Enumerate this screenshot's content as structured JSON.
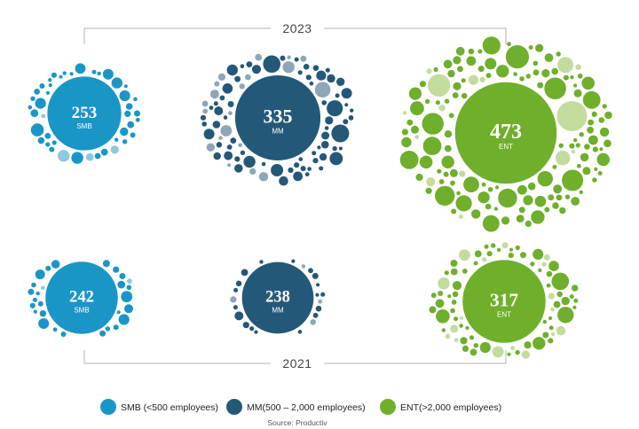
{
  "chart_data": {
    "type": "bubble",
    "groups": [
      {
        "year": "2023",
        "items": [
          {
            "segment": "SMB",
            "value": 253,
            "color": "#1A96C6"
          },
          {
            "segment": "MM",
            "value": 335,
            "color": "#245878"
          },
          {
            "segment": "ENT",
            "value": 473,
            "color": "#6FAF2B"
          }
        ]
      },
      {
        "year": "2021",
        "items": [
          {
            "segment": "SMB",
            "value": 242,
            "color": "#1A96C6"
          },
          {
            "segment": "MM",
            "value": 238,
            "color": "#245878"
          },
          {
            "segment": "ENT",
            "value": 317,
            "color": "#6FAF2B"
          }
        ]
      }
    ],
    "legend": [
      {
        "label": "SMB (<500 employees)",
        "color": "#1A96C6"
      },
      {
        "label": "MM(500 – 2,000 employees)",
        "color": "#245878"
      },
      {
        "label": "ENT(>2,000 employees)",
        "color": "#6FAF2B"
      }
    ],
    "source": "Source: Productiv",
    "light_colors": {
      "SMB": "#8FC7DE",
      "MM": "#8FA6B8",
      "ENT": "#C2DC9E"
    }
  }
}
